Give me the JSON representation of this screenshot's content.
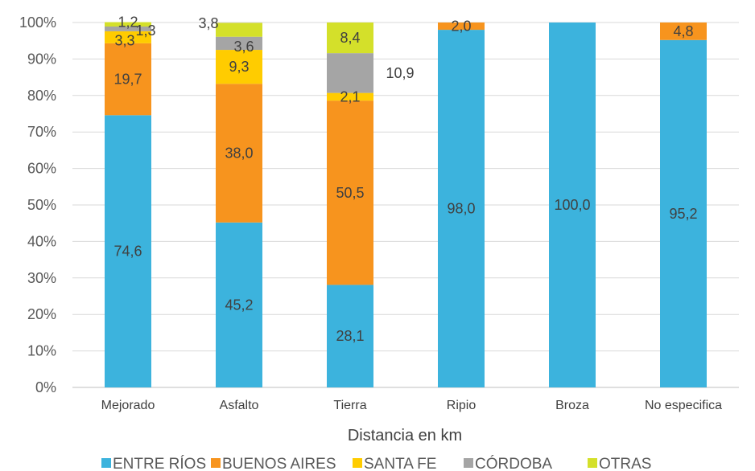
{
  "chart_data": {
    "type": "bar",
    "stacked": true,
    "percent_stacked": true,
    "categories": [
      "Mejorado",
      "Asfalto",
      "Tierra",
      "Ripio",
      "Broza",
      "No especifica"
    ],
    "series": [
      {
        "name": "ENTRE RÍOS",
        "color": "#3CB3DD",
        "values": [
          74.6,
          45.2,
          28.1,
          98.0,
          100.0,
          95.2
        ],
        "labels": [
          "74,6",
          "45,2",
          "28,1",
          "98,0",
          "100,0",
          "95,2"
        ]
      },
      {
        "name": "BUENOS AIRES",
        "color": "#F7941E",
        "values": [
          19.7,
          38.0,
          50.5,
          2.0,
          0,
          4.8
        ],
        "labels": [
          "19,7",
          "38,0",
          "50,5",
          "2,0",
          "",
          "4,8"
        ]
      },
      {
        "name": "SANTA FE",
        "color": "#FFCC00",
        "values": [
          3.3,
          9.3,
          2.1,
          0,
          0,
          0
        ],
        "labels": [
          "3,3",
          "9,3",
          "2,1",
          "",
          "",
          ""
        ]
      },
      {
        "name": "CÓRDOBA",
        "color": "#A5A5A5",
        "values": [
          1.3,
          3.6,
          10.9,
          0,
          0,
          0
        ],
        "labels": [
          "1,3",
          "3,6",
          "10,9",
          "",
          "",
          ""
        ]
      },
      {
        "name": "OTRAS",
        "color": "#D4E02A",
        "values": [
          1.2,
          3.8,
          8.4,
          0,
          0,
          0
        ],
        "labels": [
          "1,2",
          "3,8",
          "8,4",
          "",
          "",
          ""
        ]
      }
    ],
    "xlabel": "Distancia en km",
    "ylabel": "",
    "ylim": [
      0,
      100
    ],
    "yticks": [
      "0%",
      "10%",
      "20%",
      "30%",
      "40%",
      "50%",
      "60%",
      "70%",
      "80%",
      "90%",
      "100%"
    ],
    "grid": true,
    "legend_position": "bottom"
  }
}
